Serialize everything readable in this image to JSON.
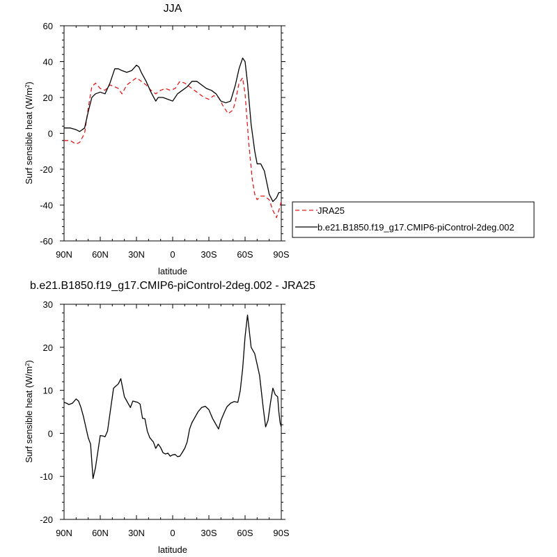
{
  "chart_data": [
    {
      "type": "line",
      "title": "JJA",
      "xlabel": "latitude",
      "ylabel": "Surf sensible heat (W/m",
      "ylabel_sup": "2",
      "ylabel_close": ")",
      "xlim": [
        90,
        -90
      ],
      "ylim": [
        -60,
        60
      ],
      "xticks": [
        90,
        60,
        30,
        0,
        -30,
        -60,
        -90
      ],
      "xtick_labels": [
        "90N",
        "60N",
        "30N",
        "0",
        "30S",
        "60S",
        "90S"
      ],
      "yticks": [
        -60,
        -40,
        -20,
        0,
        20,
        40,
        60
      ],
      "ytick_labels": [
        "-60",
        "-40",
        "-20",
        "0",
        "20",
        "40",
        "60"
      ],
      "legend_position": "right",
      "series": [
        {
          "name": "JRA25",
          "color": "#e41a1c",
          "dash": "dashed",
          "x": [
            90,
            85,
            80,
            77,
            73,
            70,
            67,
            64,
            60,
            56,
            52,
            48,
            45,
            42,
            38,
            34,
            30,
            26,
            22,
            18,
            14,
            10,
            6,
            2,
            -2,
            -6,
            -10,
            -14,
            -18,
            -22,
            -26,
            -30,
            -34,
            -38,
            -42,
            -46,
            -50,
            -52,
            -55,
            -58,
            -60,
            -63,
            -66,
            -68,
            -70,
            -73,
            -76,
            -80,
            -83,
            -86,
            -88,
            -90
          ],
          "y": [
            -4,
            -4,
            -6,
            -5,
            0,
            14,
            26,
            28,
            25,
            24,
            27,
            26,
            25,
            22,
            27,
            29,
            31,
            29,
            27,
            24,
            22,
            24,
            25,
            24,
            25,
            29,
            28,
            26,
            24,
            22,
            20,
            19,
            21,
            20,
            15,
            11,
            13,
            18,
            28,
            31,
            22,
            -5,
            -26,
            -34,
            -37,
            -35,
            -35,
            -37,
            -43,
            -47,
            -43,
            -38
          ]
        },
        {
          "name": "b.e21.B1850.f19_g17.CMIP6-piControl-2deg.002",
          "color": "#000000",
          "dash": "solid",
          "x": [
            90,
            85,
            80,
            77,
            73,
            70,
            67,
            64,
            60,
            56,
            52,
            48,
            45,
            42,
            38,
            34,
            30,
            28,
            26,
            22,
            18,
            14,
            12,
            8,
            4,
            0,
            -4,
            -8,
            -12,
            -16,
            -20,
            -24,
            -28,
            -32,
            -36,
            -40,
            -44,
            -48,
            -52,
            -55,
            -58,
            -60,
            -62,
            -65,
            -68,
            -70,
            -73,
            -76,
            -80,
            -83,
            -86,
            -88,
            -90
          ],
          "y": [
            3,
            3,
            2,
            1,
            3,
            12,
            20,
            22,
            23,
            22,
            28,
            36,
            36,
            35,
            34,
            35,
            38,
            37,
            34,
            29,
            23,
            18,
            20,
            20,
            19,
            18,
            22,
            24,
            26,
            29,
            29,
            27,
            25,
            24,
            22,
            18,
            17,
            18,
            27,
            36,
            42,
            40,
            28,
            5,
            -10,
            -17,
            -17,
            -21,
            -34,
            -38,
            -36,
            -33,
            -33
          ]
        }
      ]
    },
    {
      "type": "line",
      "title": "b.e21.B1850.f19_g17.CMIP6-piControl-2deg.002 - JRA25",
      "xlabel": "latitude",
      "ylabel": "Surf sensible heat (W/m",
      "ylabel_sup": "2",
      "ylabel_close": ")",
      "xlim": [
        90,
        -90
      ],
      "ylim": [
        -20,
        30
      ],
      "xticks": [
        90,
        60,
        30,
        0,
        -30,
        -60,
        -90
      ],
      "xtick_labels": [
        "90N",
        "60N",
        "30N",
        "0",
        "30S",
        "60S",
        "90S"
      ],
      "yticks": [
        -20,
        -10,
        0,
        10,
        20,
        30
      ],
      "ytick_labels": [
        "-20",
        "-10",
        "0",
        "10",
        "20",
        "30"
      ],
      "series": [
        {
          "color": "#000000",
          "dash": "solid",
          "x": [
            90,
            88,
            86,
            83,
            80,
            78,
            76,
            74,
            72,
            70,
            68,
            66,
            64,
            60,
            58,
            56,
            54,
            51,
            49,
            45,
            43,
            40,
            38,
            35,
            33,
            29,
            27,
            25,
            23,
            21,
            19,
            16,
            14,
            12,
            10,
            8,
            6,
            4,
            2,
            0,
            -2,
            -4,
            -6,
            -8,
            -10,
            -12,
            -14,
            -16,
            -18,
            -21,
            -24,
            -27,
            -30,
            -33,
            -35,
            -38,
            -40,
            -43,
            -45,
            -48,
            -51,
            -54,
            -56,
            -58,
            -60,
            -62,
            -65,
            -68,
            -72,
            -75,
            -77,
            -79,
            -81,
            -83,
            -85,
            -87,
            -88,
            -89,
            -90
          ],
          "y": [
            7.2,
            7.0,
            6.7,
            7.0,
            8.0,
            7.5,
            6.0,
            4.0,
            1.5,
            -1.0,
            -2.5,
            -10.5,
            -8.0,
            -0.5,
            -0.6,
            -0.8,
            0.5,
            6.5,
            10.5,
            11.5,
            12.7,
            8.5,
            7.5,
            6.0,
            7.5,
            7.2,
            6.8,
            3.5,
            3.4,
            0.5,
            -1.0,
            -2.0,
            -3.5,
            -2.5,
            -3.3,
            -4.5,
            -4.8,
            -4.6,
            -5.3,
            -5.0,
            -4.9,
            -5.4,
            -5.3,
            -4.4,
            -3.5,
            -2.0,
            1.0,
            2.5,
            3.5,
            5.0,
            6.0,
            6.3,
            5.5,
            3.5,
            2.5,
            1.0,
            3.0,
            5.0,
            6.2,
            7.0,
            7.4,
            7.2,
            10.0,
            15.0,
            22.5,
            27.5,
            20.0,
            18.5,
            13.5,
            6.0,
            1.5,
            3.0,
            7.0,
            10.5,
            9.0,
            8.5,
            5.0,
            2.5,
            1.5
          ]
        }
      ]
    }
  ]
}
